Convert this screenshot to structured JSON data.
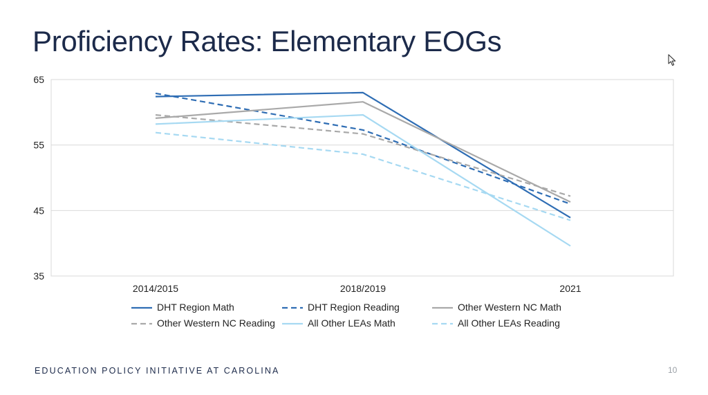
{
  "slide": {
    "title": "Proficiency Rates: Elementary EOGs",
    "footer": "EDUCATION POLICY INITIATIVE AT CAROLINA",
    "page_number": "10"
  },
  "cursor_icon": "arrow-pointer-icon",
  "chart_data": {
    "type": "line",
    "title": "",
    "xlabel": "",
    "ylabel": "",
    "categories": [
      "2014/2015",
      "2018/2019",
      "2021"
    ],
    "ylim": [
      35,
      65
    ],
    "yticks": [
      35,
      45,
      55,
      65
    ],
    "grid": true,
    "legend_position": "bottom",
    "series": [
      {
        "name": "DHT Region Math",
        "values": [
          62.4,
          63.0,
          43.9
        ],
        "color": "#2e6db4",
        "dash": "solid"
      },
      {
        "name": "DHT Region Reading",
        "values": [
          62.9,
          57.3,
          46.0
        ],
        "color": "#2e6db4",
        "dash": "dashed"
      },
      {
        "name": "Other Western NC Math",
        "values": [
          59.1,
          61.6,
          46.3
        ],
        "color": "#a9a9a9",
        "dash": "solid"
      },
      {
        "name": "Other Western NC Reading",
        "values": [
          59.6,
          56.7,
          47.2
        ],
        "color": "#a9a9a9",
        "dash": "dashed"
      },
      {
        "name": "All Other LEAs Math",
        "values": [
          58.2,
          59.6,
          39.6
        ],
        "color": "#a6d9f2",
        "dash": "solid"
      },
      {
        "name": "All Other LEAs Reading",
        "values": [
          56.9,
          53.6,
          43.5
        ],
        "color": "#a6d9f2",
        "dash": "dashed"
      }
    ]
  }
}
